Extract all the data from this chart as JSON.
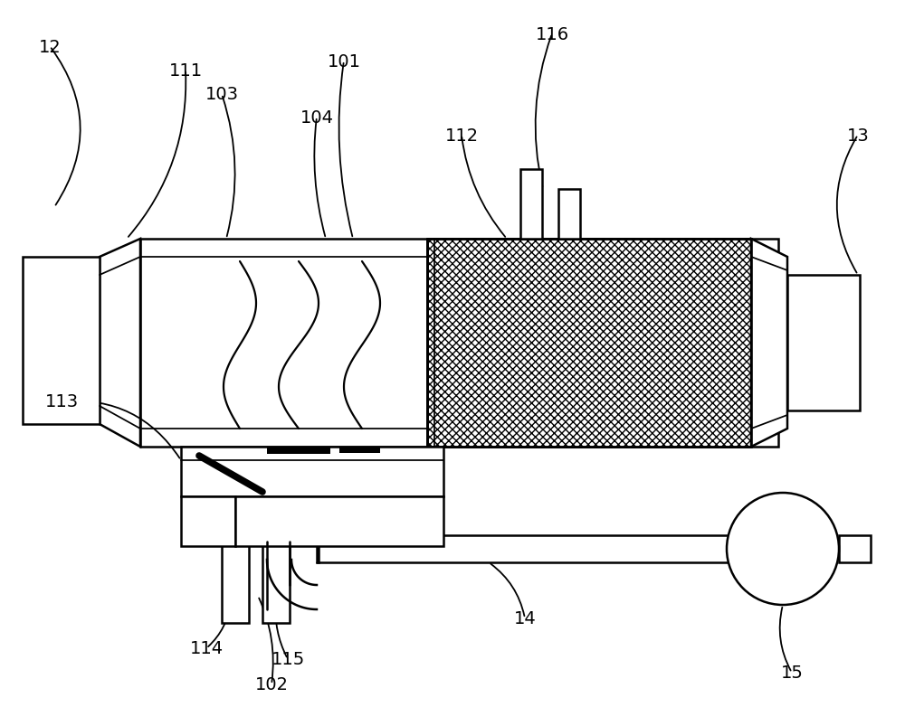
{
  "bg_color": "#ffffff",
  "line_color": "#000000",
  "lw": 1.8,
  "fig_width": 10.0,
  "fig_height": 8.04,
  "dpi": 100
}
